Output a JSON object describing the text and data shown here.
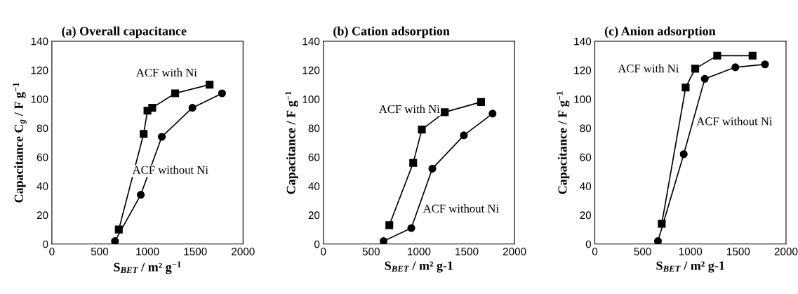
{
  "chart_data": [
    {
      "type": "line",
      "title": "(a) Overall capacitance",
      "xlabel": "S$_{BET}$ / m² g$^{−1}$",
      "ylabel": "Capacitance C$_{g}$ / F g$^{−1}$",
      "xlim": [
        0,
        2000
      ],
      "ylim": [
        0,
        140
      ],
      "xticks": [
        0,
        500,
        1000,
        1500,
        2000
      ],
      "yticks": [
        0,
        20,
        40,
        60,
        80,
        100,
        120,
        140
      ],
      "grid": false,
      "series": [
        {
          "color": "#000000",
          "marker": "square",
          "x": [
            700,
            960,
            1000,
            1050,
            1290,
            1650
          ],
          "values": [
            10,
            76,
            92,
            94,
            104,
            110
          ]
        },
        {
          "color": "#000000",
          "marker": "circle",
          "x": [
            660,
            930,
            1150,
            1470,
            1780
          ],
          "values": [
            2,
            34,
            74,
            94,
            104
          ]
        }
      ],
      "annotations": [
        "ACF with Ni",
        "ACF without Ni"
      ]
    },
    {
      "type": "line",
      "title": "(b) Cation adsorption",
      "xlabel": "S$_{BET}$ / m² g-1",
      "ylabel": "Capacitance / F g$^{−1}$",
      "xlim": [
        0,
        2000
      ],
      "ylim": [
        0,
        140
      ],
      "xticks": [
        0,
        500,
        1000,
        1500,
        2000
      ],
      "yticks": [
        0,
        20,
        40,
        60,
        80,
        100,
        120,
        140
      ],
      "grid": false,
      "series": [
        {
          "color": "#000000",
          "marker": "square",
          "x": [
            690,
            940,
            1030,
            1270,
            1650
          ],
          "values": [
            13,
            56,
            79,
            91,
            98
          ]
        },
        {
          "color": "#000000",
          "marker": "circle",
          "x": [
            630,
            920,
            1140,
            1470,
            1770
          ],
          "values": [
            2,
            11,
            52,
            75,
            90
          ]
        }
      ],
      "annotations": [
        "ACF with Ni",
        "ACF without Ni"
      ]
    },
    {
      "type": "line",
      "title": "(c) Anion adsorption",
      "xlabel": "S$_{BET}$ / m² g-1",
      "ylabel": "Capacitance / F g$^{−1}$",
      "xlim": [
        0,
        2000
      ],
      "ylim": [
        0,
        140
      ],
      "xticks": [
        0,
        500,
        1000,
        1500,
        2000
      ],
      "yticks": [
        0,
        20,
        40,
        60,
        80,
        100,
        120,
        140
      ],
      "grid": false,
      "series": [
        {
          "color": "#000000",
          "marker": "square",
          "x": [
            700,
            950,
            1050,
            1280,
            1650
          ],
          "values": [
            14,
            108,
            121,
            130,
            130
          ]
        },
        {
          "color": "#000000",
          "marker": "circle",
          "x": [
            660,
            930,
            1150,
            1470,
            1780
          ],
          "values": [
            2,
            62,
            114,
            122,
            124
          ]
        }
      ],
      "annotations": [
        "ACF with Ni",
        "ACF without Ni"
      ]
    }
  ]
}
